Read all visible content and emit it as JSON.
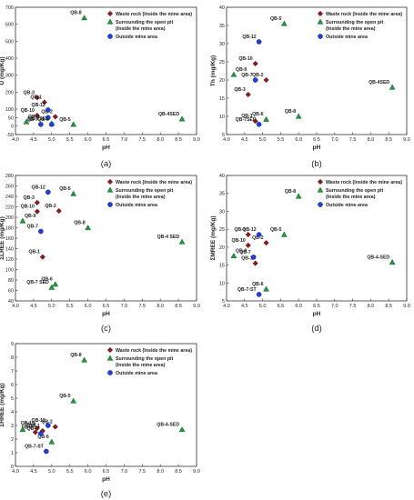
{
  "colors": {
    "waste_rock": "#8b1a1a",
    "surrounding": "#1f9a3a",
    "outside": "#1f3fd6",
    "axis": "#333333",
    "box_label_fill": "#dfe3ff"
  },
  "legend": {
    "waste_rock": "Waste rock (Inside the mine area)",
    "surrounding_l1": "Surrounding the open pit",
    "surrounding_l2": "(Inside the mine area)",
    "outside": "Outside mine area"
  },
  "chart_data": [
    {
      "id": "a",
      "panel_label": "(a)",
      "type": "scatter",
      "xlabel": "pH",
      "ylabel": "U (mg/Kg)",
      "xlim": [
        4.0,
        9.0
      ],
      "ylim": [
        -50,
        700
      ],
      "xticks": [
        "4.0",
        "4.5",
        "5.0",
        "5.5",
        "6.0",
        "6.5",
        "7.0",
        "7.5",
        "8.0",
        "8.5",
        "9.0"
      ],
      "yticks": [
        "-50",
        "0",
        "50",
        "100",
        "200",
        "300",
        "400",
        "500",
        "600",
        "700"
      ],
      "ytick_values": [
        0,
        100,
        200,
        300,
        400,
        500,
        600,
        700
      ],
      "legend_position": "top-right",
      "points": [
        {
          "x": 4.6,
          "y": 168,
          "g": "waste_rock",
          "label": "QB-3"
        },
        {
          "x": 4.8,
          "y": 140,
          "g": "waste_rock",
          "label": "QB-1"
        },
        {
          "x": 4.6,
          "y": 62,
          "g": "waste_rock",
          "label": "QB-10"
        },
        {
          "x": 5.1,
          "y": 55,
          "g": "waste_rock",
          "label": "QB-2"
        },
        {
          "x": 4.3,
          "y": 25,
          "g": "surrounding",
          "label": "QB-9"
        },
        {
          "x": 5.9,
          "y": 638,
          "g": "surrounding",
          "label": "QB-8"
        },
        {
          "x": 5.6,
          "y": 10,
          "g": "surrounding",
          "label": "QB-5"
        },
        {
          "x": 8.6,
          "y": 42,
          "g": "surrounding",
          "label": "QB-4SED"
        },
        {
          "x": 5.0,
          "y": 15,
          "g": "surrounding",
          "label": "QB-7SED"
        },
        {
          "x": 4.9,
          "y": 95,
          "g": "outside",
          "label": "QB-12"
        },
        {
          "x": 4.7,
          "y": 10,
          "g": "outside",
          "label": "QB-7"
        },
        {
          "x": 4.9,
          "y": 50,
          "g": "outside",
          "label": ""
        },
        {
          "x": 5.0,
          "y": 10,
          "g": "outside",
          "label": "QB-6"
        }
      ]
    },
    {
      "id": "b",
      "panel_label": "(b)",
      "type": "scatter",
      "xlabel": "pH",
      "ylabel": "Th (mg/Kg)",
      "xlim": [
        4.0,
        9.0
      ],
      "ylim": [
        5,
        40
      ],
      "xticks": [
        "4.0",
        "4.5",
        "5.0",
        "5.5",
        "6.0",
        "6.5",
        "7.0",
        "7.5",
        "8.0",
        "8.5",
        "9.0"
      ],
      "yticks": [
        "5",
        "10",
        "15",
        "20",
        "25",
        "30",
        "35",
        "40"
      ],
      "legend_position": "top-right",
      "points": [
        {
          "x": 4.8,
          "y": 24.5,
          "g": "waste_rock",
          "label": "QB-10"
        },
        {
          "x": 5.1,
          "y": 20,
          "g": "waste_rock",
          "label": "QB-2"
        },
        {
          "x": 4.6,
          "y": 16,
          "g": "waste_rock",
          "label": "QB-3"
        },
        {
          "x": 4.8,
          "y": 8.7,
          "g": "waste_rock",
          "label": "QB-1"
        },
        {
          "x": 5.6,
          "y": 35.5,
          "g": "surrounding",
          "label": "QB-5"
        },
        {
          "x": 4.2,
          "y": 21.5,
          "g": "surrounding",
          "label": "QB-9"
        },
        {
          "x": 8.6,
          "y": 18,
          "g": "surrounding",
          "label": "QB-4SED"
        },
        {
          "x": 6.0,
          "y": 10,
          "g": "surrounding",
          "label": "QB-8"
        },
        {
          "x": 5.1,
          "y": 9.2,
          "g": "surrounding",
          "label": "QB-6"
        },
        {
          "x": 4.9,
          "y": 30.5,
          "g": "outside",
          "label": "QB-12"
        },
        {
          "x": 4.8,
          "y": 20,
          "g": "outside",
          "label": "QB-7"
        },
        {
          "x": 4.9,
          "y": 7.8,
          "g": "outside",
          "label": "QB-7SED"
        }
      ]
    },
    {
      "id": "c",
      "panel_label": "(c)",
      "type": "scatter",
      "xlabel": "pH",
      "ylabel": "ΣLREE (mg/Kg)",
      "xlim": [
        4.0,
        9.0
      ],
      "ylim": [
        40,
        280
      ],
      "xticks": [
        "4.0",
        "4.5",
        "5.0",
        "5.5",
        "6.0",
        "6.5",
        "7.0",
        "7.5",
        "8.0",
        "8.5",
        "9.0"
      ],
      "yticks": [
        "40",
        "60",
        "80",
        "100",
        "120",
        "140",
        "160",
        "180",
        "200",
        "220",
        "240",
        "260",
        "280"
      ],
      "legend_position": "top-right",
      "points": [
        {
          "x": 4.6,
          "y": 228,
          "g": "waste_rock",
          "label": "QB-3"
        },
        {
          "x": 4.6,
          "y": 211,
          "g": "waste_rock",
          "label": "QB-10"
        },
        {
          "x": 5.2,
          "y": 212,
          "g": "waste_rock",
          "label": "QB-2"
        },
        {
          "x": 4.75,
          "y": 124,
          "g": "waste_rock",
          "label": "QB-1"
        },
        {
          "x": 5.6,
          "y": 245,
          "g": "surrounding",
          "label": "QB-5"
        },
        {
          "x": 4.2,
          "y": 193,
          "g": "surrounding",
          "label": "QB-9"
        },
        {
          "x": 6.0,
          "y": 180,
          "g": "surrounding",
          "label": "QB-8"
        },
        {
          "x": 8.6,
          "y": 153,
          "g": "surrounding",
          "label": "QB-4 SED"
        },
        {
          "x": 5.1,
          "y": 72,
          "g": "surrounding",
          "label": "QB-6"
        },
        {
          "x": 5.0,
          "y": 66,
          "g": "surrounding",
          "label": "QB-7 SED"
        },
        {
          "x": 4.9,
          "y": 248,
          "g": "outside",
          "label": "QB-12"
        },
        {
          "x": 4.7,
          "y": 173,
          "g": "outside",
          "label": "QB-7"
        }
      ]
    },
    {
      "id": "d",
      "panel_label": "(d)",
      "type": "scatter",
      "xlabel": "pH",
      "ylabel": "ΣMREE (mg/Kg)",
      "xlim": [
        4.0,
        9.0
      ],
      "ylim": [
        5,
        40
      ],
      "xticks": [
        "4.0",
        "4.5",
        "5.0",
        "5.5",
        "6.0",
        "6.5",
        "7.0",
        "7.5",
        "8.0",
        "8.5",
        "9.0"
      ],
      "yticks": [
        "5",
        "10",
        "15",
        "20",
        "25",
        "30",
        "35",
        "40"
      ],
      "legend_position": "top-right",
      "points": [
        {
          "x": 4.6,
          "y": 23.5,
          "g": "waste_rock",
          "label": "QB-3"
        },
        {
          "x": 4.6,
          "y": 20.5,
          "g": "waste_rock",
          "label": "QB-10"
        },
        {
          "x": 5.1,
          "y": 21.2,
          "g": "waste_rock",
          "label": "QB-2"
        },
        {
          "x": 4.8,
          "y": 15.5,
          "g": "waste_rock",
          "label": "QB-1"
        },
        {
          "x": 6.0,
          "y": 34.2,
          "g": "surrounding",
          "label": "QB-8"
        },
        {
          "x": 5.6,
          "y": 23.5,
          "g": "surrounding",
          "label": "QB-5"
        },
        {
          "x": 4.2,
          "y": 17.6,
          "g": "surrounding",
          "label": "QB-9"
        },
        {
          "x": 8.6,
          "y": 15.8,
          "g": "surrounding",
          "label": "QB-4-SED"
        },
        {
          "x": 5.1,
          "y": 8.3,
          "g": "surrounding",
          "label": "QB-6"
        },
        {
          "x": 4.9,
          "y": 23.5,
          "g": "outside",
          "label": "QB-12"
        },
        {
          "x": 4.75,
          "y": 17.2,
          "g": "outside",
          "label": "QB-7"
        },
        {
          "x": 4.9,
          "y": 6.8,
          "g": "outside",
          "label": "QB-7-ST"
        }
      ]
    },
    {
      "id": "e",
      "panel_label": "(e)",
      "type": "scatter",
      "xlabel": "pH",
      "ylabel": "ΣHREE (mg/Kg)",
      "xlim": [
        4.0,
        9.0
      ],
      "ylim": [
        0,
        9
      ],
      "xticks": [
        "4.0",
        "4.5",
        "5.0",
        "5.5",
        "6.0",
        "6.5",
        "7.0",
        "7.5",
        "8.0",
        "8.5",
        "9.0"
      ],
      "yticks": [
        "0",
        "1",
        "2",
        "3",
        "4",
        "5",
        "6",
        "7",
        "8",
        "9"
      ],
      "legend_position": "top-right",
      "points": [
        {
          "x": 4.6,
          "y": 2.8,
          "g": "waste_rock",
          "label": "QB-10"
        },
        {
          "x": 4.55,
          "y": 2.5,
          "g": "waste_rock",
          "label": "QB-3"
        },
        {
          "x": 5.1,
          "y": 2.9,
          "g": "waste_rock",
          "label": "QB-2"
        },
        {
          "x": 4.75,
          "y": 2.6,
          "g": "waste_rock",
          "label": "QB-1"
        },
        {
          "x": 4.2,
          "y": 2.7,
          "g": "surrounding",
          "label": "QB-9"
        },
        {
          "x": 5.9,
          "y": 7.8,
          "g": "surrounding",
          "label": "QB-8"
        },
        {
          "x": 5.6,
          "y": 4.8,
          "g": "surrounding",
          "label": "QB-5"
        },
        {
          "x": 8.6,
          "y": 2.7,
          "g": "surrounding",
          "label": "QB-4-SED"
        },
        {
          "x": 5.0,
          "y": 1.8,
          "g": "surrounding",
          "label": "QB-6"
        },
        {
          "x": 4.9,
          "y": 3.0,
          "g": "outside",
          "label": "QB-12"
        },
        {
          "x": 4.7,
          "y": 2.4,
          "g": "outside",
          "label": "QB-7"
        },
        {
          "x": 4.85,
          "y": 1.1,
          "g": "outside",
          "label": "QB-7-ST"
        }
      ]
    }
  ]
}
